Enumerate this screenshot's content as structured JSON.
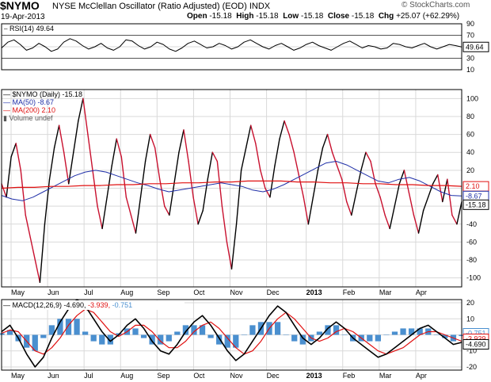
{
  "header": {
    "symbol": "$NYMO",
    "name": "NYSE McClellan Oscillator (Ratio Adjusted) (EOD)",
    "exchange": "INDX",
    "date": "19-Apr-2013",
    "ohlc_labels": {
      "open": "Open",
      "high": "High",
      "low": "Low",
      "close": "Close",
      "chg": "Chg"
    },
    "ohlc_values": {
      "open": "-15.18",
      "high": "-15.18",
      "low": "-15.18",
      "close": "-15.18",
      "chg": "+25.07 (+62.29%)"
    },
    "brand": "© StockCharts.com"
  },
  "colors": {
    "background": "#ffffff",
    "grid": "#d9d9d9",
    "price_up": "#000000",
    "price_down": "#c8102e",
    "ma50": "#1f2fa8",
    "ma200": "#e01010",
    "macd": "#000000",
    "signal": "#e01010",
    "histogram": "#4a8fcf",
    "rsi": "#000000"
  },
  "chart_data": [
    {
      "type": "line",
      "panel": "rsi",
      "legend": "RSI(14) 49.64",
      "current_value_label": "49.64",
      "y_tick_labels": [
        "90",
        "70",
        "50",
        "30",
        "10"
      ],
      "ylim": [
        10,
        90
      ],
      "reference_lines": [
        30,
        70
      ],
      "series": [
        {
          "name": "RSI(14)",
          "values": [
            48,
            58,
            62,
            54,
            44,
            48,
            56,
            50,
            42,
            46,
            58,
            64,
            60,
            52,
            46,
            50,
            56,
            48,
            44,
            50,
            62,
            60,
            52,
            46,
            50,
            58,
            54,
            46,
            42,
            48,
            56,
            60,
            54,
            48,
            50,
            56,
            52,
            46,
            50,
            58,
            62,
            56,
            50,
            46,
            52,
            56,
            50,
            44,
            48,
            54,
            58,
            52,
            48,
            44,
            50,
            56,
            60,
            54,
            48,
            52,
            50,
            46,
            48,
            56,
            54,
            50,
            48,
            52,
            56,
            50,
            46,
            50,
            54,
            52,
            49.64
          ]
        }
      ]
    },
    {
      "type": "line",
      "panel": "price",
      "legend": [
        "$NYMO (Daily) -15.18",
        "MA(50) -8.67",
        "MA(200) 2.10",
        "Volume undef"
      ],
      "x_tick_labels": [
        "May",
        "Jun",
        "Jul",
        "Aug",
        "Sep",
        "Oct",
        "Nov",
        "Dec",
        "2013",
        "Feb",
        "Mar",
        "Apr"
      ],
      "y_tick_labels": [
        "100",
        "80",
        "60",
        "40",
        "20",
        "0",
        "-20",
        "-40",
        "-60",
        "-80",
        "-100"
      ],
      "ylim": [
        -110,
        110
      ],
      "grid": true,
      "price_labels": [
        "2.10",
        "-8.67",
        "-15.18"
      ],
      "series": [
        {
          "name": "$NYMO",
          "values": [
            5,
            -10,
            35,
            50,
            20,
            -30,
            -55,
            -80,
            -105,
            -40,
            10,
            45,
            70,
            40,
            5,
            40,
            75,
            100,
            60,
            20,
            -20,
            -45,
            -10,
            25,
            55,
            35,
            -10,
            -30,
            -50,
            -10,
            30,
            60,
            45,
            10,
            -20,
            -30,
            5,
            40,
            65,
            30,
            -10,
            -40,
            -25,
            10,
            40,
            30,
            -20,
            -60,
            -90,
            -40,
            20,
            45,
            70,
            50,
            20,
            0,
            -10,
            25,
            55,
            75,
            60,
            40,
            15,
            -10,
            -40,
            -10,
            20,
            45,
            60,
            40,
            25,
            10,
            -15,
            -30,
            -5,
            20,
            40,
            30,
            5,
            -10,
            -30,
            -45,
            -20,
            5,
            20,
            -5,
            -30,
            -50,
            -25,
            -10,
            5,
            15,
            -15,
            10,
            -30,
            -40,
            -15.18
          ]
        },
        {
          "name": "MA(50)",
          "values": [
            -8,
            -12,
            -14,
            -10,
            -4,
            2,
            8,
            14,
            18,
            20,
            18,
            14,
            10,
            6,
            3,
            -1,
            -4,
            -2,
            0,
            2,
            4,
            6,
            4,
            2,
            -2,
            -4,
            -1,
            4,
            10,
            16,
            22,
            28,
            30,
            26,
            20,
            14,
            8,
            6,
            10,
            12,
            8,
            2,
            -4,
            -8,
            -8.67
          ]
        },
        {
          "name": "MA(200)",
          "values": [
            0,
            1,
            1,
            2,
            2,
            3,
            3,
            4,
            4,
            5,
            5,
            6,
            6,
            7,
            7,
            8,
            8,
            8,
            7,
            7,
            6,
            6,
            5,
            5,
            4,
            4,
            3,
            3,
            2.1
          ]
        }
      ]
    },
    {
      "type": "line",
      "panel": "macd",
      "legend": [
        "MACD(12,26,9) -4.690",
        "-3.939",
        "-0.751"
      ],
      "x_tick_labels": [
        "May",
        "Jun",
        "Jul",
        "Aug",
        "Sep",
        "Oct",
        "Nov",
        "Dec",
        "2013",
        "Feb",
        "Mar",
        "Apr"
      ],
      "y_tick_labels": [
        "20",
        "10",
        "0",
        "-10",
        "-20"
      ],
      "ylim": [
        -22,
        22
      ],
      "price_labels": [
        "-0.751",
        "-3.939",
        "-4.690"
      ],
      "series": [
        {
          "name": "MACD",
          "values": [
            2,
            6,
            -2,
            -12,
            -20,
            -14,
            -2,
            8,
            16,
            22,
            18,
            10,
            2,
            -4,
            0,
            6,
            10,
            4,
            -4,
            -10,
            -12,
            -6,
            2,
            8,
            12,
            6,
            -2,
            -10,
            -16,
            -12,
            -4,
            4,
            12,
            18,
            14,
            6,
            -2,
            -6,
            -2,
            4,
            8,
            4,
            -2,
            -6,
            -10,
            -14,
            -12,
            -8,
            -4,
            0,
            4,
            6,
            2,
            -2,
            -6,
            -4.69
          ]
        },
        {
          "name": "Signal",
          "values": [
            1,
            3,
            2,
            -4,
            -10,
            -12,
            -8,
            -2,
            6,
            12,
            16,
            14,
            8,
            2,
            -1,
            2,
            6,
            6,
            2,
            -4,
            -8,
            -8,
            -4,
            2,
            6,
            8,
            4,
            -2,
            -8,
            -12,
            -10,
            -4,
            4,
            10,
            14,
            10,
            4,
            -2,
            -4,
            -2,
            2,
            4,
            2,
            -2,
            -6,
            -10,
            -12,
            -10,
            -8,
            -4,
            0,
            2,
            2,
            0,
            -2,
            -3.939
          ]
        },
        {
          "name": "Histogram",
          "values": [
            1,
            3,
            -4,
            -8,
            -10,
            -2,
            6,
            10,
            10,
            10,
            2,
            -4,
            -6,
            -6,
            1,
            4,
            4,
            -2,
            -6,
            -6,
            -4,
            2,
            6,
            6,
            6,
            -2,
            -6,
            -8,
            -8,
            0,
            6,
            8,
            8,
            8,
            0,
            -4,
            -6,
            -4,
            2,
            6,
            6,
            0,
            -4,
            -4,
            -4,
            -4,
            0,
            2,
            4,
            4,
            4,
            4,
            0,
            -2,
            -4,
            -0.751
          ]
        }
      ]
    }
  ]
}
